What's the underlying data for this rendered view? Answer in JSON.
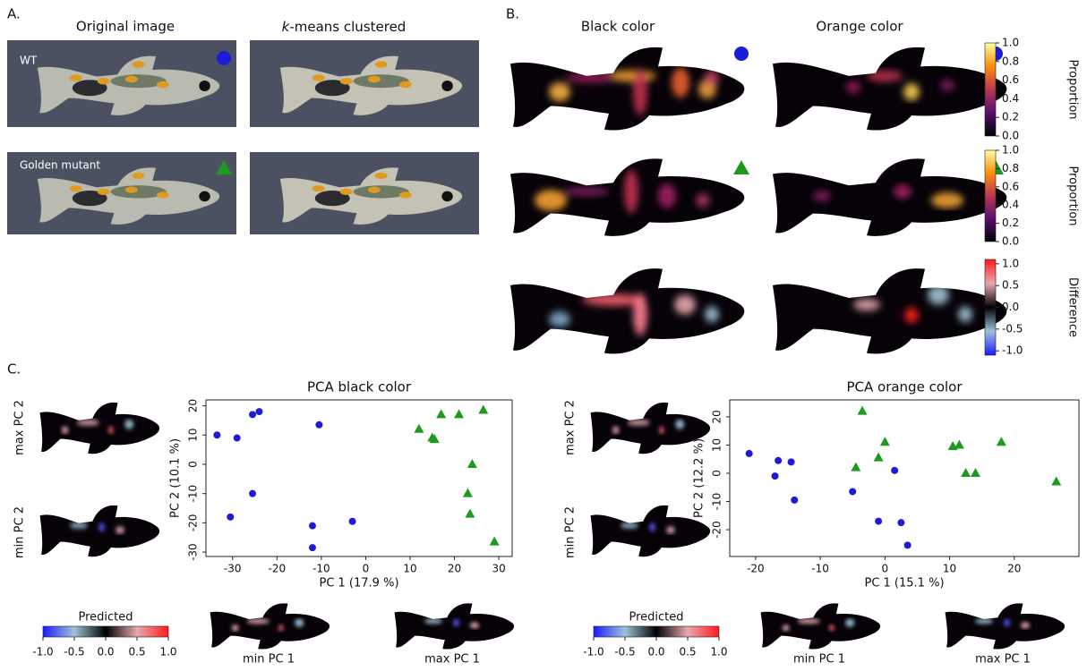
{
  "panel_a": {
    "label": "A.",
    "original": "Original image",
    "kmeans_k": "k",
    "kmeans_rest": "-means clustered",
    "rows": [
      "WT",
      "Golden mutant"
    ]
  },
  "panel_b": {
    "label": "B.",
    "columns": [
      "Black color",
      "Orange color"
    ],
    "colorbars": [
      {
        "label": "Proportion",
        "colormap": "inferno",
        "lim": [
          0,
          1
        ],
        "ticks": [
          {
            "value": 0,
            "label": "0.0"
          },
          {
            "value": 0.2,
            "label": "0.2"
          },
          {
            "value": 0.4,
            "label": "0.4"
          },
          {
            "value": 0.6,
            "label": "0.6"
          },
          {
            "value": 0.8,
            "label": "0.8"
          },
          {
            "value": 1,
            "label": "1.0"
          }
        ]
      },
      {
        "label": "Proportion",
        "colormap": "inferno",
        "lim": [
          0,
          1
        ],
        "ticks": [
          {
            "value": 0,
            "label": "0.0"
          },
          {
            "value": 0.2,
            "label": "0.2"
          },
          {
            "value": 0.4,
            "label": "0.4"
          },
          {
            "value": 0.6,
            "label": "0.6"
          },
          {
            "value": 0.8,
            "label": "0.8"
          },
          {
            "value": 1,
            "label": "1.0"
          }
        ]
      },
      {
        "label": "Difference",
        "colormap": "diverging",
        "lim": [
          -1.1,
          1.1
        ],
        "ticks": [
          {
            "value": -1,
            "label": "-1.0"
          },
          {
            "value": -0.5,
            "label": "-0.5"
          },
          {
            "value": 0,
            "label": "0.0"
          },
          {
            "value": 0.5,
            "label": "0.5"
          },
          {
            "value": 1,
            "label": "1.0"
          }
        ]
      }
    ]
  },
  "panel_c": {
    "label": "C.",
    "sides": [
      {
        "max_pc2": "max PC 2",
        "min_pc2": "min PC 2",
        "predicted": "Predicted",
        "min_pc1": "min PC 1",
        "max_pc1": "max PC 1",
        "colormap": "diverging",
        "lim": [
          -1,
          1
        ],
        "ticks": [
          {
            "value": -1,
            "label": "-1.0"
          },
          {
            "value": -0.5,
            "label": "-0.5"
          },
          {
            "value": 0,
            "label": "0.0"
          },
          {
            "value": 0.5,
            "label": "0.5"
          },
          {
            "value": 1,
            "label": "1.0"
          }
        ]
      },
      {
        "max_pc2": "max PC 2",
        "min_pc2": "min PC 2",
        "predicted": "Predicted",
        "min_pc1": "min PC 1",
        "max_pc1": "max PC 1",
        "colormap": "diverging",
        "lim": [
          -1,
          1
        ],
        "ticks": [
          {
            "value": -1,
            "label": "-1.0"
          },
          {
            "value": -0.5,
            "label": "-0.5"
          },
          {
            "value": 0,
            "label": "0.0"
          },
          {
            "value": 0.5,
            "label": "0.5"
          },
          {
            "value": 1,
            "label": "1.0"
          }
        ]
      }
    ]
  },
  "chart_data": [
    {
      "type": "scatter",
      "title": "PCA black color",
      "x_label": "PC 1 (17.9 %)",
      "y_label": "PC 2 (10.1 %)",
      "xlim": [
        -36,
        33
      ],
      "ylim": [
        -31.5,
        22
      ],
      "xticks": [
        -30,
        -20,
        -10,
        0,
        10,
        20,
        30
      ],
      "yticks": [
        -30,
        -20,
        -10,
        0,
        10,
        20
      ],
      "series": [
        {
          "color": "#1c1cd8",
          "marker": "circle",
          "x": [
            -33.5,
            -29,
            -25.5,
            -24,
            -10.5,
            -25.5,
            -30.5,
            -12,
            -3,
            -12
          ],
          "values": [
            10,
            9,
            17,
            18,
            13.5,
            -10,
            -18,
            -21,
            -19.5,
            -28.5
          ]
        },
        {
          "color": "#1e9a1e",
          "marker": "triangle",
          "x": [
            12,
            15,
            15.5,
            17,
            21,
            26.5,
            24,
            23,
            23.5,
            29
          ],
          "values": [
            12,
            9,
            8.5,
            17,
            17,
            18.5,
            0,
            -10,
            -17,
            -26.5
          ]
        }
      ]
    },
    {
      "type": "scatter",
      "title": "PCA orange color",
      "x_label": "PC 1 (15.1 %)",
      "y_label": "PC 2 (12.2 %)",
      "xlim": [
        -24,
        30
      ],
      "ylim": [
        -29.5,
        26
      ],
      "xticks": [
        -20,
        -10,
        0,
        10,
        20
      ],
      "yticks": [
        -20,
        -10,
        0,
        10,
        20
      ],
      "series": [
        {
          "color": "#1c1cd8",
          "marker": "circle",
          "x": [
            -21,
            -16.5,
            -14.5,
            -17,
            -14,
            -5,
            1.5,
            -1,
            2.5,
            3.5
          ],
          "values": [
            7,
            4.5,
            4,
            -1,
            -9.5,
            -6.5,
            1,
            -17,
            -17.5,
            -25.5
          ]
        },
        {
          "color": "#1e9a1e",
          "marker": "triangle",
          "x": [
            -3.5,
            0,
            -1,
            -4.5,
            10.5,
            11.5,
            12.5,
            14,
            18,
            26.5
          ],
          "values": [
            22,
            11,
            5.5,
            2,
            9.5,
            10,
            0,
            0,
            11,
            -3
          ]
        }
      ]
    }
  ]
}
